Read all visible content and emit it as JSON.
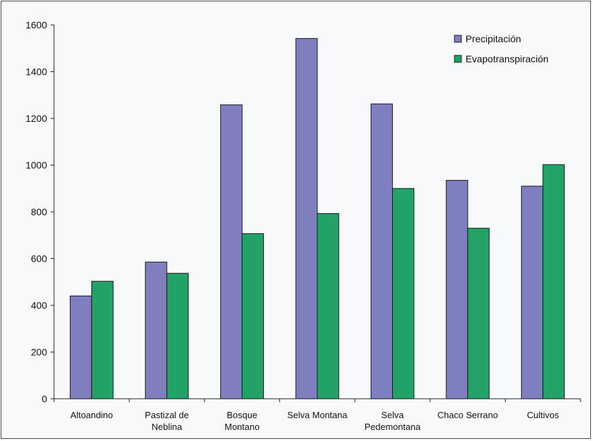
{
  "chart_data": {
    "type": "bar",
    "categories": [
      [
        "Altoandino"
      ],
      [
        "Pastizal de",
        "Neblina"
      ],
      [
        "Bosque",
        "Montano"
      ],
      [
        "Selva Montana"
      ],
      [
        "Selva",
        "Pedemontana"
      ],
      [
        "Chaco Serrano"
      ],
      [
        "Cultivos"
      ]
    ],
    "series": [
      {
        "name": "Precipitación",
        "color": "#7f7fc0",
        "values": [
          440,
          585,
          1258,
          1542,
          1262,
          935,
          910
        ]
      },
      {
        "name": "Evapotranspiración",
        "color": "#22a266",
        "values": [
          503,
          537,
          707,
          793,
          900,
          730,
          1002
        ]
      }
    ],
    "ylim": [
      0,
      1600
    ],
    "yticks": [
      0,
      200,
      400,
      600,
      800,
      1000,
      1200,
      1400,
      1600
    ],
    "legend_position": "top-right",
    "grid": false
  }
}
